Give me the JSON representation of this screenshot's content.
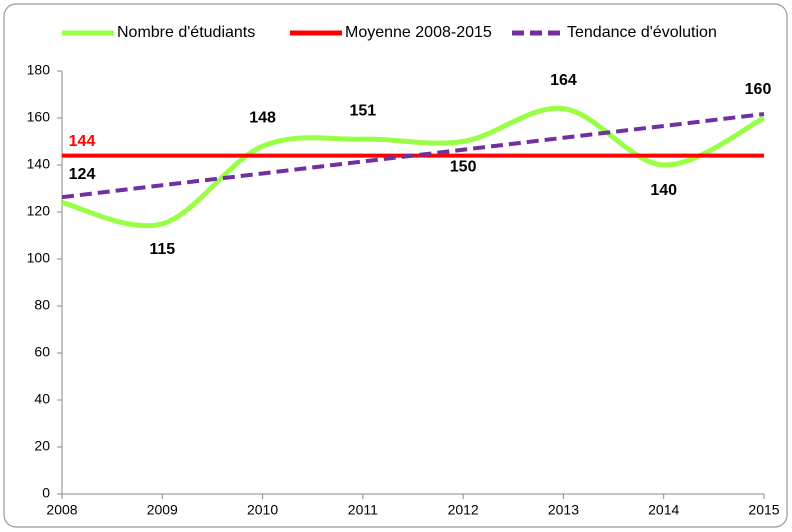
{
  "chart_data": {
    "type": "line",
    "x": [
      2008,
      2009,
      2010,
      2011,
      2012,
      2013,
      2014,
      2015
    ],
    "xlim": [
      2008,
      2015
    ],
    "xticks": [
      2008,
      2009,
      2010,
      2011,
      2012,
      2013,
      2014,
      2015
    ],
    "ylim": [
      0,
      180
    ],
    "yticks": [
      0,
      20,
      40,
      60,
      80,
      100,
      120,
      140,
      160,
      180
    ],
    "grid": false,
    "legend": "top",
    "series": [
      {
        "name": "Nombre d'étudiants",
        "color": "#99ff44",
        "style": "smooth",
        "values": [
          124,
          115,
          148,
          151,
          150,
          164,
          140,
          160
        ]
      },
      {
        "name": "Moyenne 2008-2015",
        "color": "#ff0000",
        "style": "solid",
        "values": [
          144,
          144,
          144,
          144,
          144,
          144,
          144,
          144
        ]
      },
      {
        "name": "Tendance d'évolution",
        "color": "#7030a0",
        "style": "dashed",
        "values": [
          126.3,
          131.4,
          136.4,
          141.5,
          146.5,
          151.6,
          156.6,
          161.7
        ]
      }
    ]
  }
}
